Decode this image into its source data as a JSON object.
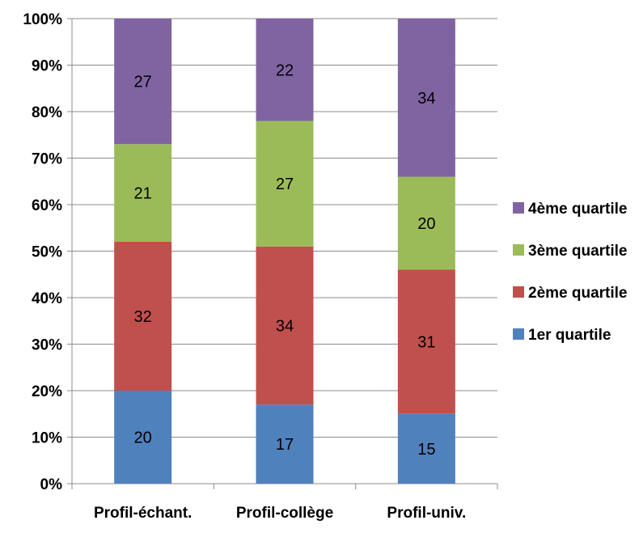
{
  "chart_data": {
    "type": "bar",
    "stacked": true,
    "percent_stacked": true,
    "categories": [
      "Profil-échant.",
      "Profil-collège",
      "Profil-univ."
    ],
    "series": [
      {
        "name": "1er quartile",
        "values": [
          20,
          17,
          15
        ],
        "color": "#4F81BD"
      },
      {
        "name": "2ème quartile",
        "values": [
          32,
          34,
          31
        ],
        "color": "#C0504D"
      },
      {
        "name": "3ème quartile",
        "values": [
          21,
          27,
          20
        ],
        "color": "#9BBB59"
      },
      {
        "name": "4ème quartile",
        "values": [
          27,
          22,
          34
        ],
        "color": "#8064A2"
      }
    ],
    "ylim": [
      0,
      100
    ],
    "yticks": [
      "0%",
      "10%",
      "20%",
      "30%",
      "40%",
      "50%",
      "60%",
      "70%",
      "80%",
      "90%",
      "100%"
    ],
    "grid": true,
    "legend_position": "right",
    "legend_order": [
      "4ème quartile",
      "3ème quartile",
      "2ème quartile",
      "1er quartile"
    ]
  }
}
